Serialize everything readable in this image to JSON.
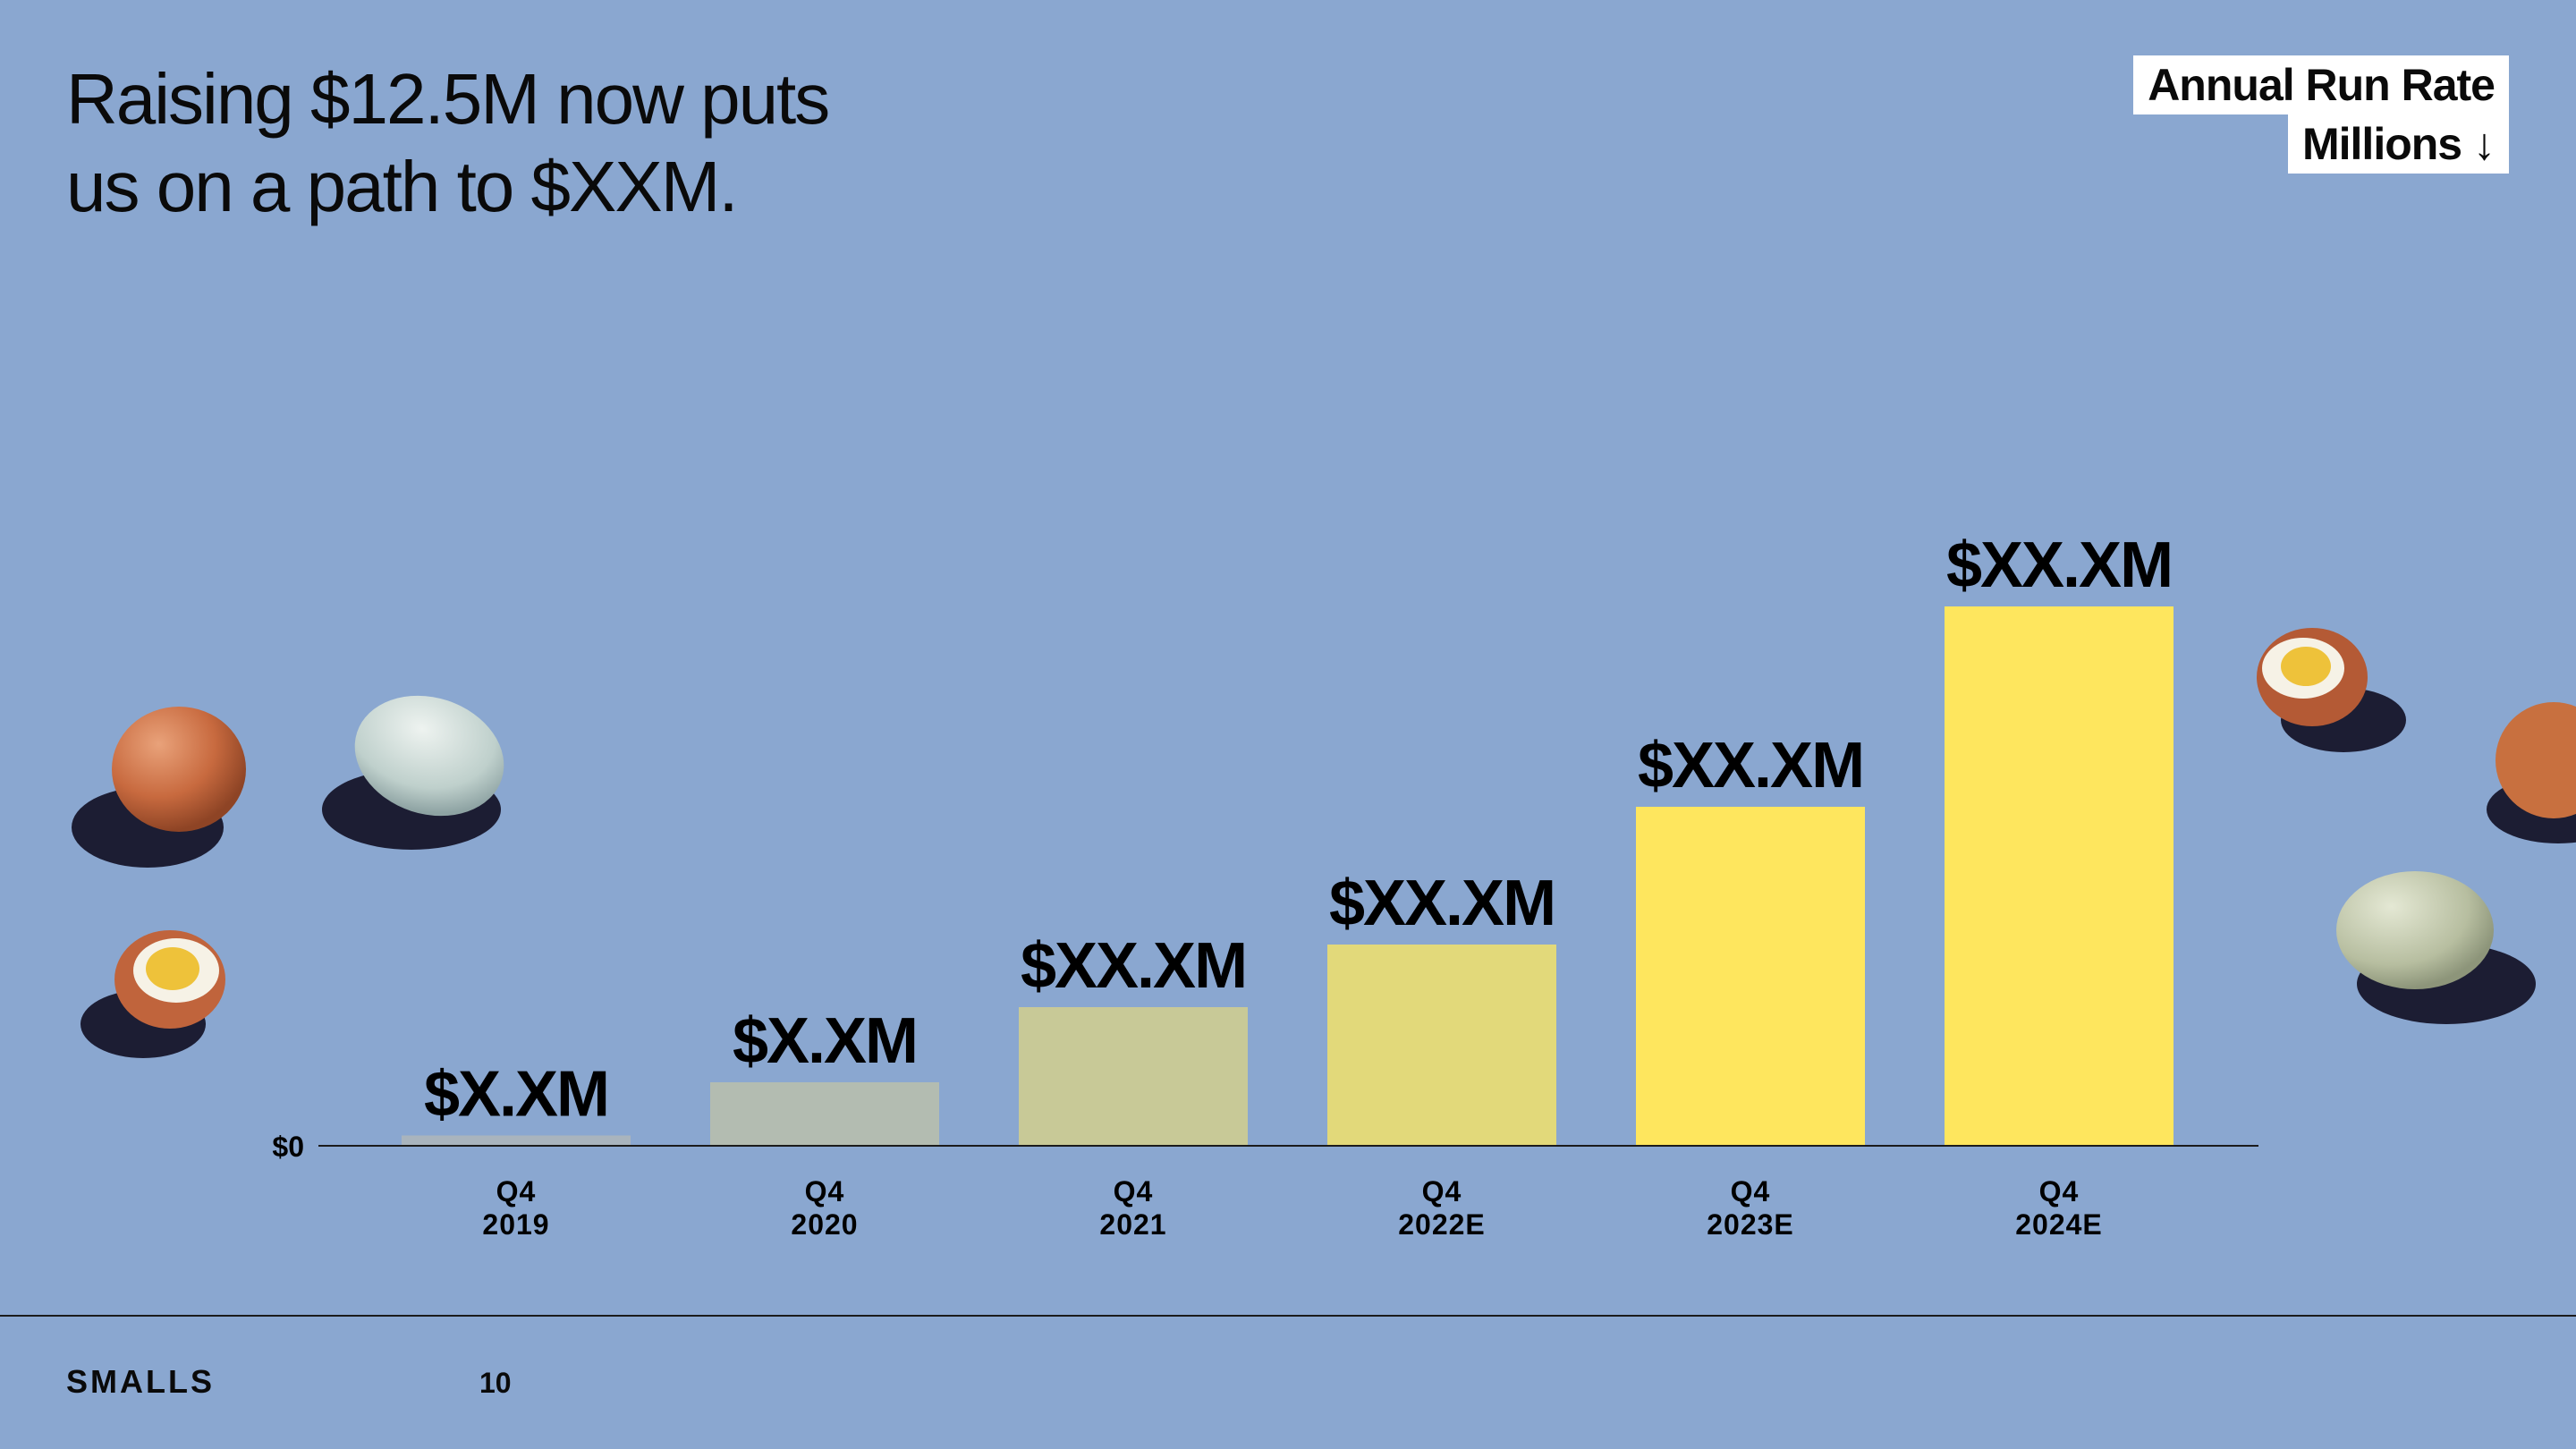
{
  "slide": {
    "title_line1": "Raising $12.5M now puts",
    "title_line2": "us on a path to $XXM.",
    "legend_line1": "Annual Run Rate",
    "legend_line2": "Millions ↓",
    "brand": "SMALLS",
    "page_number": "10"
  },
  "chart_data": {
    "type": "bar",
    "title": "Annual Run Rate",
    "ylabel": "Millions",
    "y_tick_label": "$0",
    "categories": [
      "Q4 2019",
      "Q4 2020",
      "Q4 2021",
      "Q4 2022E",
      "Q4 2023E",
      "Q4 2024E"
    ],
    "category_lines": [
      [
        "Q4",
        "2019"
      ],
      [
        "Q4",
        "2020"
      ],
      [
        "Q4",
        "2021"
      ],
      [
        "Q4",
        "2022E"
      ],
      [
        "Q4",
        "2023E"
      ],
      [
        "Q4",
        "2024E"
      ]
    ],
    "values": [
      1.5,
      10,
      22,
      32,
      54,
      86
    ],
    "data_labels": [
      "$X.XM",
      "$X.XM",
      "$XX.XM",
      "$XX.XM",
      "$XX.XM",
      "$XX.XM"
    ],
    "bar_colors": [
      "#a9b4bd",
      "#b3bcb1",
      "#c8c997",
      "#e2d97a",
      "#fee65e",
      "#fee65e"
    ],
    "ylim": [
      0,
      100
    ],
    "grid": false,
    "legend": "top-right"
  }
}
